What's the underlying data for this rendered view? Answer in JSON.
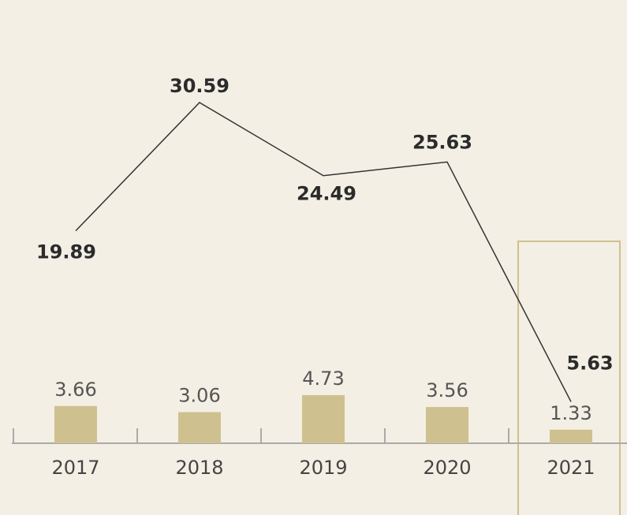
{
  "chart_data": {
    "type": "bar-line",
    "categories": [
      "2017",
      "2018",
      "2019",
      "2020",
      "2021"
    ],
    "series": [
      {
        "type": "line",
        "color": "#333333",
        "values": [
          19.89,
          30.59,
          24.49,
          25.63,
          5.63
        ]
      },
      {
        "type": "bar",
        "color": "#cfc18f",
        "values": [
          3.66,
          3.06,
          4.73,
          3.56,
          1.33
        ]
      }
    ]
  }
}
